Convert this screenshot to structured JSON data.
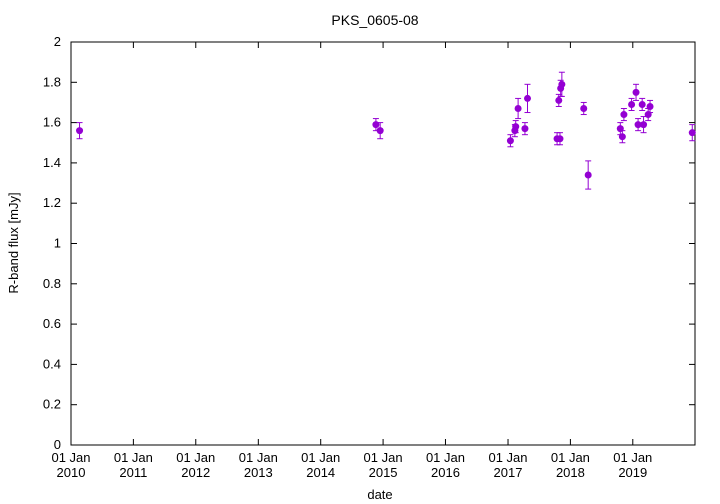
{
  "chart_data": {
    "type": "scatter",
    "title": "PKS_0605-08",
    "xlabel": "date",
    "ylabel": "R-band flux [mJy]",
    "xlim": [
      "2010-01-01",
      "2019-12-31"
    ],
    "ylim": [
      0,
      2
    ],
    "x_ticks": [
      {
        "date": "2010-01-01",
        "line1": "01 Jan",
        "line2": "2010"
      },
      {
        "date": "2011-01-01",
        "line1": "01 Jan",
        "line2": "2011"
      },
      {
        "date": "2012-01-01",
        "line1": "01 Jan",
        "line2": "2012"
      },
      {
        "date": "2013-01-01",
        "line1": "01 Jan",
        "line2": "2013"
      },
      {
        "date": "2014-01-01",
        "line1": "01 Jan",
        "line2": "2014"
      },
      {
        "date": "2015-01-01",
        "line1": "01 Jan",
        "line2": "2015"
      },
      {
        "date": "2016-01-01",
        "line1": "01 Jan",
        "line2": "2016"
      },
      {
        "date": "2017-01-01",
        "line1": "01 Jan",
        "line2": "2017"
      },
      {
        "date": "2018-01-01",
        "line1": "01 Jan",
        "line2": "2018"
      },
      {
        "date": "2019-01-01",
        "line1": "01 Jan",
        "line2": "2019"
      }
    ],
    "y_ticks": [
      {
        "value": 0,
        "label": "0"
      },
      {
        "value": 0.2,
        "label": "0.2"
      },
      {
        "value": 0.4,
        "label": "0.4"
      },
      {
        "value": 0.6,
        "label": "0.6"
      },
      {
        "value": 0.8,
        "label": "0.8"
      },
      {
        "value": 1,
        "label": "1"
      },
      {
        "value": 1.2,
        "label": "1.2"
      },
      {
        "value": 1.4,
        "label": "1.4"
      },
      {
        "value": 1.6,
        "label": "1.6"
      },
      {
        "value": 1.8,
        "label": "1.8"
      },
      {
        "value": 2,
        "label": "2"
      }
    ],
    "grid": false,
    "legend": "none",
    "color": "#9400d3",
    "series": [
      {
        "points": [
          {
            "x": "2010-02-20",
            "y": 1.56,
            "err": 0.04
          },
          {
            "x": "2014-11-20",
            "y": 1.59,
            "err": 0.03
          },
          {
            "x": "2014-12-15",
            "y": 1.56,
            "err": 0.04
          },
          {
            "x": "2017-01-15",
            "y": 1.51,
            "err": 0.03
          },
          {
            "x": "2017-02-10",
            "y": 1.56,
            "err": 0.03
          },
          {
            "x": "2017-02-15",
            "y": 1.58,
            "err": 0.03
          },
          {
            "x": "2017-03-01",
            "y": 1.67,
            "err": 0.05
          },
          {
            "x": "2017-04-10",
            "y": 1.57,
            "err": 0.03
          },
          {
            "x": "2017-04-25",
            "y": 1.72,
            "err": 0.07
          },
          {
            "x": "2017-10-15",
            "y": 1.52,
            "err": 0.03
          },
          {
            "x": "2017-10-25",
            "y": 1.71,
            "err": 0.03
          },
          {
            "x": "2017-11-01",
            "y": 1.52,
            "err": 0.03
          },
          {
            "x": "2017-11-05",
            "y": 1.77,
            "err": 0.04
          },
          {
            "x": "2017-11-12",
            "y": 1.79,
            "err": 0.06
          },
          {
            "x": "2018-03-20",
            "y": 1.67,
            "err": 0.03
          },
          {
            "x": "2018-04-15",
            "y": 1.34,
            "err": 0.07
          },
          {
            "x": "2018-10-20",
            "y": 1.57,
            "err": 0.03
          },
          {
            "x": "2018-11-01",
            "y": 1.53,
            "err": 0.03
          },
          {
            "x": "2018-11-10",
            "y": 1.64,
            "err": 0.03
          },
          {
            "x": "2018-12-25",
            "y": 1.69,
            "err": 0.03
          },
          {
            "x": "2019-01-20",
            "y": 1.75,
            "err": 0.04
          },
          {
            "x": "2019-02-01",
            "y": 1.59,
            "err": 0.03
          },
          {
            "x": "2019-02-25",
            "y": 1.69,
            "err": 0.03
          },
          {
            "x": "2019-03-05",
            "y": 1.59,
            "err": 0.04
          },
          {
            "x": "2019-04-01",
            "y": 1.64,
            "err": 0.03
          },
          {
            "x": "2019-04-12",
            "y": 1.68,
            "err": 0.03
          },
          {
            "x": "2019-12-15",
            "y": 1.55,
            "err": 0.04
          }
        ]
      }
    ]
  }
}
